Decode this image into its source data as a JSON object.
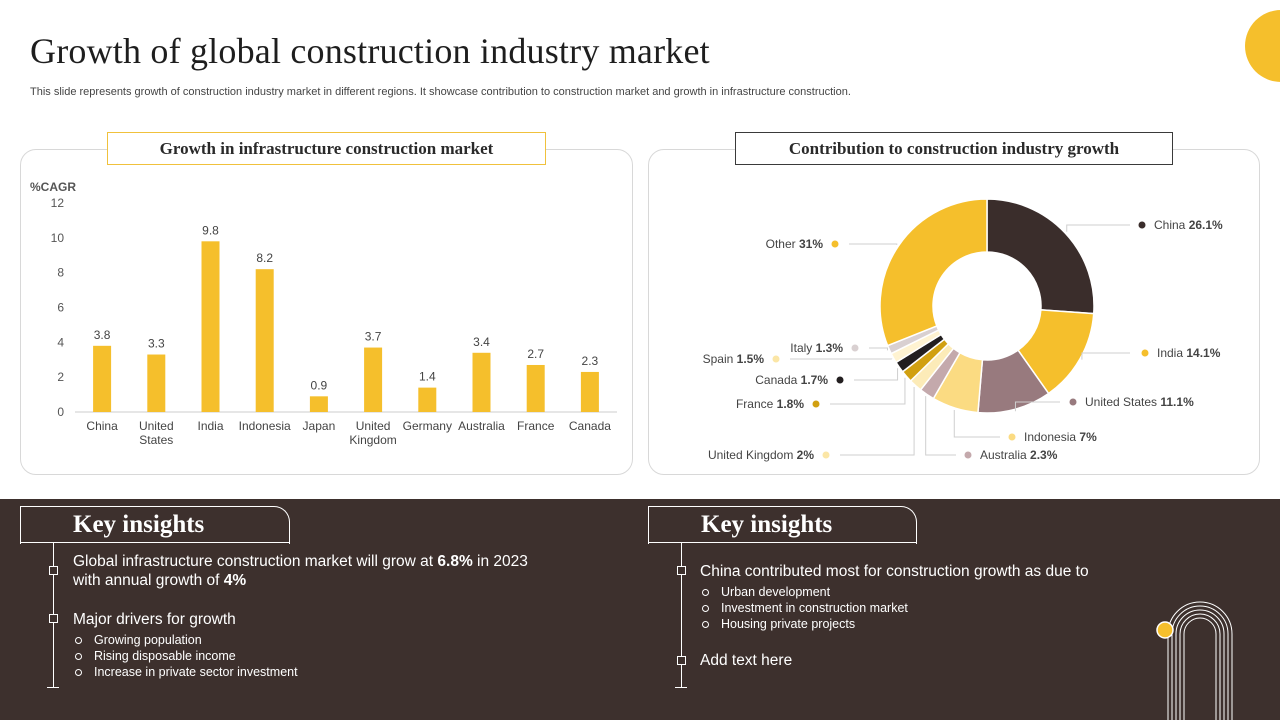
{
  "title": "Growth of global construction industry market",
  "subtitle": "This slide represents growth of construction industry market in different regions. It showcase contribution to construction market and growth in infrastructure construction.",
  "colors": {
    "accent": "#f5bf2c",
    "dark": "#3d302d",
    "axis": "#cccccc"
  },
  "chart_data": [
    {
      "type": "bar",
      "title": "Growth in infrastructure construction market",
      "ylabel": "%CAGR",
      "xlabel": "",
      "ylim": [
        0,
        12
      ],
      "yticks": [
        0,
        2,
        4,
        6,
        8,
        10,
        12
      ],
      "grid": false,
      "categories": [
        "China",
        "United States",
        "India",
        "Indonesia",
        "Japan",
        "United Kingdom",
        "Germany",
        "Australia",
        "France",
        "Canada"
      ],
      "category_lines": [
        [
          "China"
        ],
        [
          "United",
          "States"
        ],
        [
          "India"
        ],
        [
          "Indonesia"
        ],
        [
          "Japan"
        ],
        [
          "United",
          "Kingdom"
        ],
        [
          "Germany"
        ],
        [
          "Australia"
        ],
        [
          "France"
        ],
        [
          "Canada"
        ]
      ],
      "values": [
        3.8,
        3.3,
        9.8,
        8.2,
        0.9,
        3.7,
        1.4,
        3.4,
        2.7,
        2.3
      ],
      "value_labels": [
        "3.8",
        "3.3",
        "9.8",
        "8.2",
        "0.9",
        "3.7",
        "1.4",
        "3.4",
        "2.7",
        "2.3"
      ],
      "color": "#f5bf2c"
    },
    {
      "type": "pie",
      "variant": "donut",
      "title": "Contribution to construction industry growth",
      "slices": [
        {
          "name": "China",
          "value": 26.1,
          "value_label": "26.1%",
          "color": "#3a2d2b"
        },
        {
          "name": "India",
          "value": 14.1,
          "value_label": "14.1%",
          "color": "#f5bf2c"
        },
        {
          "name": "United States",
          "value": 11.1,
          "value_label": "11.1%",
          "color": "#987a7e"
        },
        {
          "name": "Indonesia",
          "value": 7,
          "value_label": "7%",
          "color": "#fbdb82"
        },
        {
          "name": "Australia",
          "value": 2.3,
          "value_label": "2.3%",
          "color": "#c4a9ac"
        },
        {
          "name": "United Kingdom",
          "value": 2,
          "value_label": "2%",
          "color": "#fcebb8"
        },
        {
          "name": "France",
          "value": 1.8,
          "value_label": "1.8%",
          "color": "#d1a011"
        },
        {
          "name": "Canada",
          "value": 1.7,
          "value_label": "1.7%",
          "color": "#231f20"
        },
        {
          "name": "Spain",
          "value": 1.5,
          "value_label": "1.5%",
          "color": "#fff3d1"
        },
        {
          "name": "Italy",
          "value": 1.3,
          "value_label": "1.3%",
          "color": "#d9d0d1"
        },
        {
          "name": "Other",
          "value": 31,
          "value_label": "31%",
          "color": "#f5bf2c"
        }
      ]
    }
  ],
  "insights_left": {
    "heading": "Key insights",
    "point1_pre": "Global infrastructure  construction  market will grow at ",
    "point1_bold1": "6.8%",
    "point1_mid": " in 2023",
    "point1_line2": "with annual growth of ",
    "point1_bold2": "4%",
    "point2": "Major drivers for growth",
    "drivers": [
      "Growing population",
      "Rising disposable income",
      "Increase in private  sector investment"
    ]
  },
  "insights_right": {
    "heading": "Key insights",
    "point1": "China contributed most for construction growth as due to",
    "reasons": [
      "Urban development",
      "Investment  in construction market",
      "Housing private  projects"
    ],
    "point2": "Add text here"
  }
}
